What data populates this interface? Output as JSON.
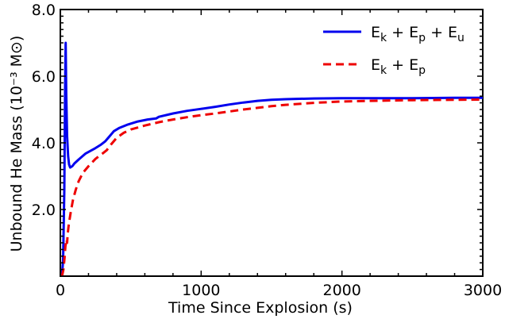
{
  "chart_data": {
    "type": "line",
    "title": "",
    "xlabel": "Time  Since  Explosion (s)",
    "ylabel": "Unbound  He  Mass (10⁻³ M⊙)",
    "xlim": [
      0,
      3000
    ],
    "ylim": [
      0,
      8.0
    ],
    "xticks": [
      0,
      1000,
      2000,
      3000
    ],
    "xtick_labels": [
      "0",
      "1000",
      "2000",
      "3000"
    ],
    "yticks": [
      2.0,
      4.0,
      6.0,
      8.0
    ],
    "ytick_labels": [
      "2.0",
      "4.0",
      "6.0",
      "8.0"
    ],
    "grid": false,
    "legend_position": "top-right",
    "series": [
      {
        "name": "Ek + Ep + Eu",
        "color": "#0000ee",
        "dash": "solid",
        "points": [
          [
            12,
            0
          ],
          [
            20,
            0.5
          ],
          [
            28,
            2.6
          ],
          [
            34,
            5.6
          ],
          [
            38,
            7.0
          ],
          [
            42,
            5.5
          ],
          [
            48,
            4.2
          ],
          [
            55,
            3.6
          ],
          [
            62,
            3.35
          ],
          [
            70,
            3.26
          ],
          [
            85,
            3.3
          ],
          [
            100,
            3.38
          ],
          [
            130,
            3.5
          ],
          [
            180,
            3.68
          ],
          [
            240,
            3.82
          ],
          [
            290,
            3.95
          ],
          [
            320,
            4.05
          ],
          [
            350,
            4.2
          ],
          [
            380,
            4.35
          ],
          [
            420,
            4.45
          ],
          [
            480,
            4.55
          ],
          [
            550,
            4.64
          ],
          [
            620,
            4.7
          ],
          [
            680,
            4.73
          ],
          [
            700,
            4.78
          ],
          [
            800,
            4.88
          ],
          [
            900,
            4.96
          ],
          [
            1000,
            5.02
          ],
          [
            1100,
            5.08
          ],
          [
            1200,
            5.15
          ],
          [
            1300,
            5.21
          ],
          [
            1400,
            5.26
          ],
          [
            1500,
            5.29
          ],
          [
            1600,
            5.31
          ],
          [
            1800,
            5.33
          ],
          [
            2000,
            5.34
          ],
          [
            2200,
            5.34
          ],
          [
            2500,
            5.34
          ],
          [
            2800,
            5.35
          ],
          [
            3000,
            5.35
          ]
        ]
      },
      {
        "name": "Ek + Ep",
        "color": "#ee0000",
        "dash": "dashed",
        "points": [
          [
            12,
            0
          ],
          [
            22,
            0.2
          ],
          [
            30,
            0.55
          ],
          [
            36,
            0.9
          ],
          [
            40,
            1.0
          ],
          [
            44,
            1.1
          ],
          [
            48,
            1.0
          ],
          [
            52,
            1.25
          ],
          [
            60,
            1.55
          ],
          [
            75,
            1.95
          ],
          [
            90,
            2.3
          ],
          [
            110,
            2.6
          ],
          [
            130,
            2.85
          ],
          [
            160,
            3.1
          ],
          [
            200,
            3.3
          ],
          [
            250,
            3.52
          ],
          [
            300,
            3.68
          ],
          [
            330,
            3.78
          ],
          [
            360,
            3.95
          ],
          [
            400,
            4.15
          ],
          [
            450,
            4.3
          ],
          [
            500,
            4.4
          ],
          [
            600,
            4.52
          ],
          [
            700,
            4.62
          ],
          [
            800,
            4.7
          ],
          [
            900,
            4.77
          ],
          [
            1000,
            4.83
          ],
          [
            1100,
            4.88
          ],
          [
            1200,
            4.94
          ],
          [
            1300,
            5.0
          ],
          [
            1400,
            5.05
          ],
          [
            1500,
            5.1
          ],
          [
            1600,
            5.14
          ],
          [
            1800,
            5.2
          ],
          [
            2000,
            5.24
          ],
          [
            2200,
            5.26
          ],
          [
            2500,
            5.28
          ],
          [
            2800,
            5.29
          ],
          [
            3000,
            5.3
          ]
        ]
      }
    ],
    "legend_labels": [
      {
        "main": "E",
        "parts": [
          [
            "k",
            " + E"
          ],
          [
            "p",
            " + E"
          ],
          [
            "u",
            ""
          ]
        ]
      },
      {
        "main": "E",
        "parts": [
          [
            "k",
            " + E"
          ],
          [
            "p",
            ""
          ]
        ]
      }
    ]
  }
}
